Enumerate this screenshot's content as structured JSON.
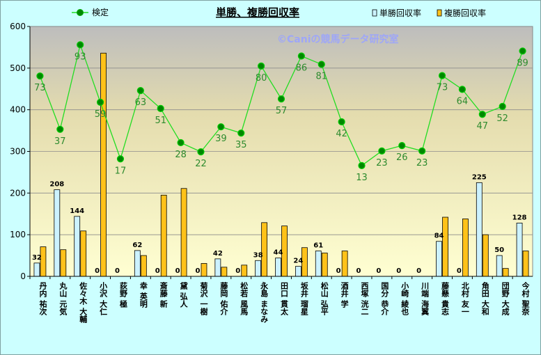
{
  "chart_data": {
    "type": "bar",
    "title": "単勝、複勝回収率",
    "watermark": "©Caniの競馬データ研究室",
    "legend": {
      "line_label": "検定",
      "bar1_label": "単勝回収率",
      "bar2_label": "複勝回収率"
    },
    "ylim": [
      0,
      600
    ],
    "yticks": [
      "0",
      "100",
      "200",
      "300",
      "400",
      "500",
      "600"
    ],
    "grid": true,
    "colors": {
      "tan": "#ccf2ff",
      "fuku": "#ffc21a",
      "line": "#22dd22",
      "point": "#008800"
    },
    "categories": [
      "丹内 祐次",
      "丸山 元気",
      "佐々木 大輔",
      "小沢 大仁",
      "荻野 極",
      "幸 英明",
      "斎藤 新",
      "黛 弘人",
      "菊沢 一樹",
      "藤岡 佑介",
      "松若 風馬",
      "永島 まなみ",
      "田口 貫太",
      "坂井 瑠星",
      "松山 弘平",
      "酒井 学",
      "西塚 洸二",
      "国分 恭介",
      "小崎 綾也",
      "川端 海翼",
      "藤懸 貴志",
      "北村 友一",
      "角田 大和",
      "団野 大成",
      "今村 聖奈"
    ],
    "series": [
      {
        "name": "単勝回収率",
        "values": [
          32,
          208,
          144,
          0,
          0,
          62,
          0,
          0,
          0,
          42,
          0,
          38,
          44,
          24,
          61,
          0,
          0,
          0,
          0,
          0,
          84,
          0,
          225,
          50,
          128
        ],
        "labels": [
          "32",
          "208",
          "144",
          "0",
          "0",
          "62",
          "0",
          "0",
          "0",
          "42",
          "0",
          "38",
          "44",
          "24",
          "61",
          "0",
          "0",
          "0",
          "0",
          "0",
          "84",
          "0",
          "225",
          "50",
          "128"
        ]
      },
      {
        "name": "複勝回収率",
        "values": [
          71,
          64,
          109,
          536,
          0,
          50,
          195,
          211,
          31,
          22,
          27,
          129,
          121,
          69,
          56,
          61,
          0,
          0,
          0,
          0,
          142,
          138,
          100,
          19,
          61
        ]
      },
      {
        "name": "検定",
        "values": [
          481,
          353,
          556,
          418,
          282,
          446,
          403,
          321,
          299,
          359,
          344,
          505,
          426,
          529,
          509,
          371,
          266,
          301,
          314,
          301,
          482,
          449,
          389,
          408,
          541
        ],
        "labels": [
          "73",
          "37",
          "93",
          "59",
          "17",
          "63",
          "51",
          "28",
          "22",
          "39",
          "35",
          "80",
          "57",
          "86",
          "81",
          "42",
          "13",
          "23",
          "26",
          "23",
          "73",
          "64",
          "47",
          "52",
          "89"
        ]
      }
    ]
  }
}
